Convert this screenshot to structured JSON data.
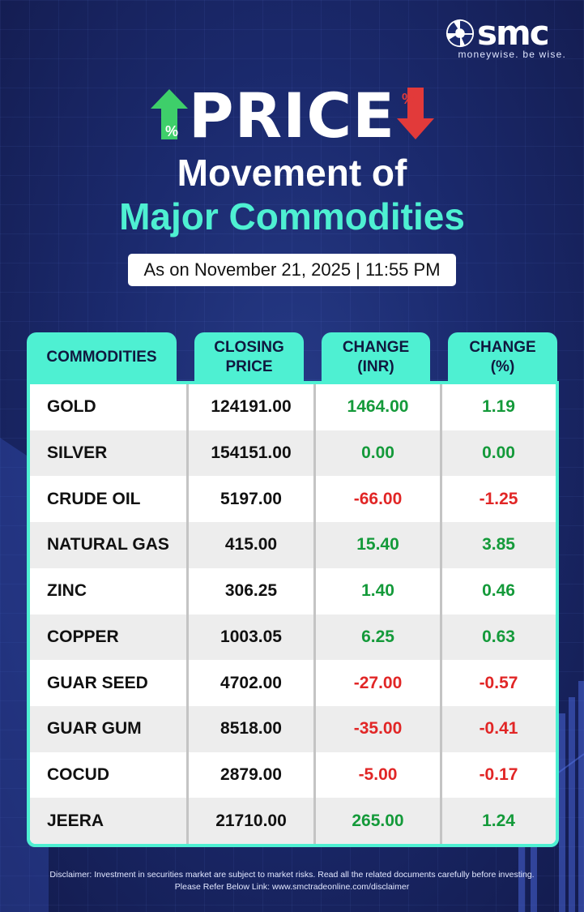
{
  "brand": {
    "name": "smc",
    "tagline": "moneywise. be wise."
  },
  "heading": {
    "line1": "PRICE",
    "line2": "Movement of",
    "line3": "Major Commodities",
    "up_icon_label": "%",
    "down_icon_label": "%"
  },
  "date_label": "As on November 21, 2025 | 11:55 PM",
  "table": {
    "headers": {
      "commodities": "COMMODITIES",
      "closing_price_1": "CLOSING",
      "closing_price_2": "PRICE",
      "change_inr_1": "CHANGE",
      "change_inr_2": "(INR)",
      "change_pct_1": "CHANGE",
      "change_pct_2": "(%)"
    },
    "rows": [
      {
        "name": "GOLD",
        "price": "124191.00",
        "change_inr": "1464.00",
        "change_pct": "1.19",
        "dir": "pos"
      },
      {
        "name": "SILVER",
        "price": "154151.00",
        "change_inr": "0.00",
        "change_pct": "0.00",
        "dir": "neu"
      },
      {
        "name": "CRUDE OIL",
        "price": "5197.00",
        "change_inr": "-66.00",
        "change_pct": "-1.25",
        "dir": "neg"
      },
      {
        "name": "NATURAL GAS",
        "price": "415.00",
        "change_inr": "15.40",
        "change_pct": "3.85",
        "dir": "pos"
      },
      {
        "name": "ZINC",
        "price": "306.25",
        "change_inr": "1.40",
        "change_pct": "0.46",
        "dir": "pos"
      },
      {
        "name": "COPPER",
        "price": "1003.05",
        "change_inr": "6.25",
        "change_pct": "0.63",
        "dir": "pos"
      },
      {
        "name": "GUAR SEED",
        "price": "4702.00",
        "change_inr": "-27.00",
        "change_pct": "-0.57",
        "dir": "neg"
      },
      {
        "name": "GUAR GUM",
        "price": "8518.00",
        "change_inr": "-35.00",
        "change_pct": "-0.41",
        "dir": "neg"
      },
      {
        "name": "COCUD",
        "price": "2879.00",
        "change_inr": "-5.00",
        "change_pct": "-0.17",
        "dir": "neg"
      },
      {
        "name": "JEERA",
        "price": "21710.00",
        "change_inr": "265.00",
        "change_pct": "1.24",
        "dir": "pos"
      }
    ]
  },
  "disclaimer": {
    "line1": "Disclaimer: Investment in securities market are subject to market risks. Read all the related documents carefully before investing.",
    "line2": "Please Refer Below Link: www.smctradeonline.com/disclaimer"
  },
  "colors": {
    "background": "#1b2a6e",
    "accent_teal": "#4ef0d2",
    "positive": "#149a3a",
    "negative": "#e12626",
    "up_arrow": "#3ecf6a",
    "down_arrow": "#e23a3a"
  }
}
